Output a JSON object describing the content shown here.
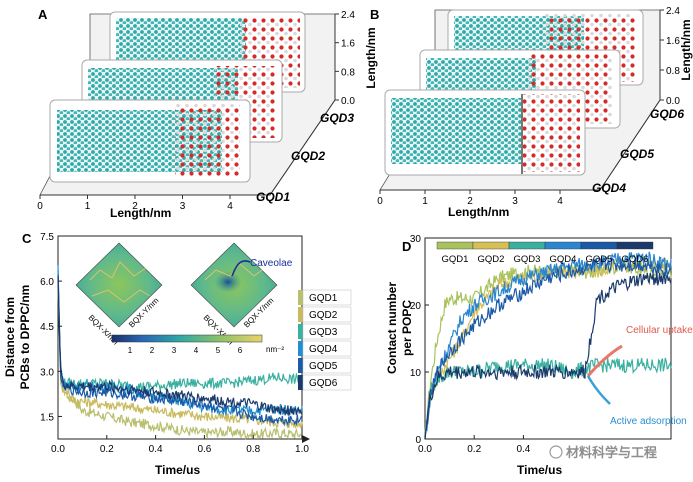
{
  "figure": {
    "panels": {
      "A": {
        "label": "A",
        "xlabel": "Length/nm",
        "ylabel": "Length/nm",
        "xticks": [
          "0",
          "1",
          "2",
          "3",
          "4"
        ],
        "zticks": [
          "0.0",
          "0.8",
          "1.6",
          "2.4"
        ],
        "layers": [
          "GQD1",
          "GQD2",
          "GQD3"
        ]
      },
      "B": {
        "label": "B",
        "xlabel": "Length/nm",
        "ylabel": "Length/nm",
        "xticks": [
          "0",
          "1",
          "2",
          "3",
          "4"
        ],
        "zticks": [
          "0.0",
          "0.8",
          "1.6",
          "2.4"
        ],
        "layers": [
          "GQD4",
          "GQD5",
          "GQD6"
        ]
      },
      "C": {
        "label": "C"
      },
      "D": {
        "label": "D"
      }
    },
    "watermark": "材料科学与工程"
  },
  "chart_data": [
    {
      "panel": "C",
      "type": "line",
      "ylabel_line1": "Distance from",
      "ylabel_line2": "PCBs to DPPC/nm",
      "xlabel": "Time/us",
      "xlim": [
        0,
        1.0
      ],
      "ylim": [
        0.75,
        7.5
      ],
      "xticks": [
        "0.0",
        "0.2",
        "0.4",
        "0.6",
        "0.8",
        "1.0"
      ],
      "yticks": [
        "1.5",
        "3.0",
        "4.5",
        "6.0",
        "7.5"
      ],
      "legend": [
        "GQD1",
        "GQD2",
        "GQD3",
        "GQD4",
        "GQD5",
        "GQD6"
      ],
      "inset": {
        "annotation": "Caveolae",
        "axis_labels": [
          "BQX-X/nm",
          "BQX-Y/nm",
          "BQX-X/nm",
          "BQX-Y/nm"
        ],
        "colorbar_ticks": [
          "1",
          "2",
          "3",
          "4",
          "5",
          "6"
        ],
        "colorbar_unit": "nm⁻²"
      },
      "series": [
        {
          "name": "GQD1",
          "color": "#b8c070",
          "t": [
            0,
            0.01,
            0.02,
            0.05,
            0.1,
            0.15,
            0.2,
            0.3,
            0.4,
            0.5,
            0.6,
            0.7,
            0.8,
            0.9,
            1.0
          ],
          "values": [
            6.2,
            3.0,
            2.6,
            2.2,
            1.7,
            1.6,
            1.5,
            1.3,
            1.2,
            1.05,
            0.95,
            1.0,
            0.9,
            0.95,
            0.9
          ]
        },
        {
          "name": "GQD2",
          "color": "#c9ba5e",
          "t": [
            0,
            0.01,
            0.02,
            0.05,
            0.1,
            0.15,
            0.2,
            0.3,
            0.4,
            0.5,
            0.6,
            0.7,
            0.8,
            0.9,
            1.0
          ],
          "values": [
            6.0,
            2.8,
            2.4,
            2.1,
            2.0,
            1.95,
            1.9,
            1.8,
            1.7,
            1.6,
            1.5,
            1.45,
            1.4,
            1.3,
            1.25
          ]
        },
        {
          "name": "GQD3",
          "color": "#3ab0a0",
          "t": [
            0,
            0.01,
            0.02,
            0.05,
            0.1,
            0.2,
            0.3,
            0.4,
            0.5,
            0.6,
            0.7,
            0.8,
            0.9,
            1.0
          ],
          "values": [
            6.4,
            3.2,
            2.6,
            2.6,
            2.6,
            2.6,
            2.5,
            2.5,
            2.6,
            2.6,
            2.6,
            2.7,
            2.8,
            2.7
          ]
        },
        {
          "name": "GQD4",
          "color": "#1e8fd0",
          "t": [
            0,
            0.01,
            0.02,
            0.05,
            0.1,
            0.2,
            0.3,
            0.4,
            0.5,
            0.6,
            0.7,
            0.8,
            0.9,
            1.0
          ],
          "values": [
            6.5,
            3.0,
            2.6,
            2.5,
            2.5,
            2.5,
            2.4,
            2.2,
            2.0,
            1.8,
            1.7,
            1.7,
            1.75,
            1.7
          ]
        },
        {
          "name": "GQD5",
          "color": "#1c5aa8",
          "t": [
            0,
            0.01,
            0.02,
            0.05,
            0.1,
            0.2,
            0.3,
            0.4,
            0.5,
            0.6,
            0.7,
            0.8,
            0.9,
            1.0
          ],
          "values": [
            6.1,
            3.0,
            2.5,
            2.4,
            2.3,
            2.3,
            2.2,
            2.1,
            2.0,
            1.9,
            1.7,
            1.5,
            1.4,
            1.4
          ]
        },
        {
          "name": "GQD6",
          "color": "#1b3a6c",
          "t": [
            0,
            0.01,
            0.02,
            0.05,
            0.1,
            0.2,
            0.3,
            0.4,
            0.5,
            0.6,
            0.7,
            0.8,
            0.9,
            1.0
          ],
          "values": [
            6.3,
            3.1,
            2.6,
            2.5,
            2.5,
            2.5,
            2.4,
            2.3,
            2.2,
            2.1,
            2.0,
            1.9,
            1.7,
            1.7
          ]
        }
      ]
    },
    {
      "panel": "D",
      "type": "line",
      "ylabel_line1": "Contact number",
      "ylabel_line2": "per POPC",
      "xlabel": "Time/us",
      "xlim": [
        0,
        1.0
      ],
      "ylim": [
        0,
        30
      ],
      "xticks": [
        "0.0",
        "0.2",
        "0.4"
      ],
      "yticks": [
        "0",
        "10",
        "20",
        "30"
      ],
      "legend": [
        "GQD1",
        "GQD2",
        "GQD3",
        "GQD4",
        "GQD5",
        "GQD6"
      ],
      "annotations": [
        "Cellular uptake",
        "Active adsorption"
      ],
      "series": [
        {
          "name": "GQD1",
          "color": "#a9c25c",
          "t": [
            0,
            0.02,
            0.05,
            0.08,
            0.1,
            0.15,
            0.2,
            0.3,
            0.4,
            0.5,
            0.6,
            0.7,
            0.8,
            0.9,
            1.0
          ],
          "values": [
            0,
            8,
            15,
            20,
            21,
            21,
            21,
            24,
            25,
            25,
            25,
            25,
            26,
            25,
            25
          ]
        },
        {
          "name": "GQD2",
          "color": "#d6bf55",
          "t": [
            0,
            0.02,
            0.05,
            0.1,
            0.15,
            0.2,
            0.25,
            0.3,
            0.4,
            0.5,
            0.6,
            0.7,
            0.8,
            0.9,
            1.0
          ],
          "values": [
            0,
            6,
            9,
            12,
            15,
            19,
            21,
            23,
            24,
            25,
            25,
            25,
            26,
            26,
            26
          ]
        },
        {
          "name": "GQD3",
          "color": "#3ab0a0",
          "t": [
            0,
            0.02,
            0.05,
            0.1,
            0.2,
            0.3,
            0.4,
            0.5,
            0.6,
            0.7,
            0.8,
            0.9,
            1.0
          ],
          "values": [
            0,
            7,
            9,
            10,
            10,
            11,
            11,
            11,
            10,
            11,
            11,
            11,
            11
          ]
        },
        {
          "name": "GQD4",
          "color": "#2a86cf",
          "t": [
            0,
            0.02,
            0.05,
            0.1,
            0.15,
            0.2,
            0.25,
            0.3,
            0.4,
            0.5,
            0.6,
            0.7,
            0.8,
            0.9,
            1.0
          ],
          "values": [
            0,
            6,
            10,
            14,
            18,
            20,
            21,
            22,
            24,
            25,
            26,
            26,
            27,
            27,
            26
          ]
        },
        {
          "name": "GQD5",
          "color": "#1c5aa8",
          "t": [
            0,
            0.02,
            0.05,
            0.1,
            0.2,
            0.3,
            0.4,
            0.5,
            0.6,
            0.7,
            0.8,
            0.9,
            1.0
          ],
          "values": [
            0,
            6,
            10,
            13,
            17,
            20,
            22,
            24,
            25,
            26,
            26,
            26,
            25
          ]
        },
        {
          "name": "GQD6",
          "color": "#1b3a6c",
          "t": [
            0,
            0.02,
            0.05,
            0.1,
            0.2,
            0.3,
            0.4,
            0.5,
            0.6,
            0.65,
            0.7,
            0.8,
            0.9,
            1.0
          ],
          "values": [
            0,
            6,
            9,
            10,
            10,
            10,
            10,
            10,
            10,
            10,
            21,
            23,
            24,
            24
          ]
        }
      ]
    }
  ]
}
